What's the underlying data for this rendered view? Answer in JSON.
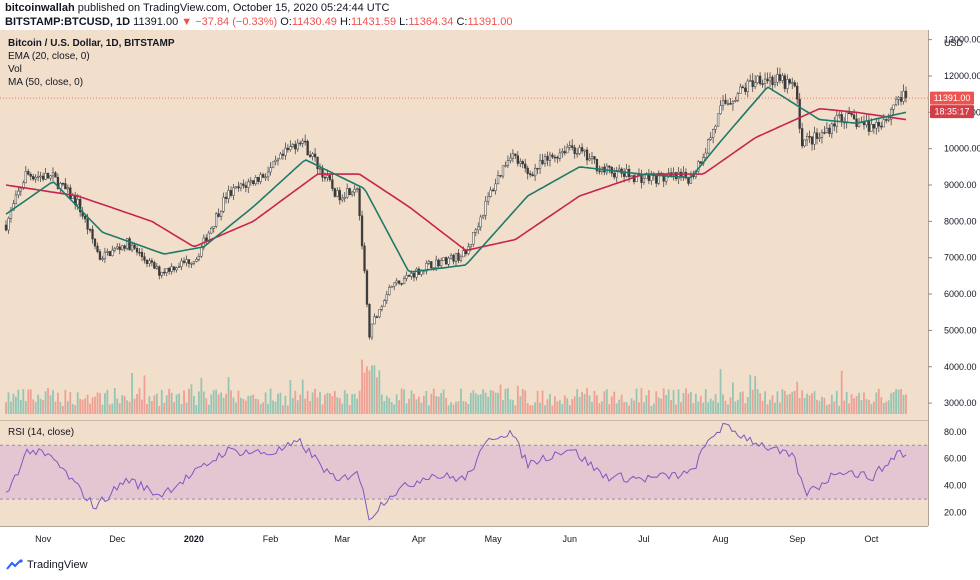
{
  "header": {
    "author": "bitcoinwallah",
    "published_text": "published on TradingView.com, October 15, 2020 05:24:44 UTC",
    "symbol": "BITSTAMP:BTCUSD, 1D",
    "last": "11391.00",
    "change": "▼ −37.84 (−0.33%)",
    "o_label": "O:",
    "o_value": "11430.49",
    "h_label": "H:",
    "h_value": "11431.59",
    "l_label": "L:",
    "l_value": "11364.34",
    "c_label": "C:",
    "c_value": "11391.00"
  },
  "legend": {
    "title": "Bitcoin / U.S. Dollar, 1D, BITSTAMP",
    "ema": "EMA (20, close, 0)",
    "vol": "Vol",
    "ma": "MA (50, close, 0)",
    "rsi": "RSI (14, close)"
  },
  "price_axis": {
    "unit": "USD",
    "ticks": [
      "13000.00",
      "12000.00",
      "11000.00",
      "10000.00",
      "9000.00",
      "8000.00",
      "7000.00",
      "6000.00",
      "5000.00",
      "4000.00",
      "3000.00"
    ],
    "last_label": "11391.00",
    "countdown_label": "18:35:17"
  },
  "rsi_axis": {
    "ticks": [
      "80.00",
      "60.00",
      "40.00",
      "20.00"
    ]
  },
  "time_axis": [
    "Nov",
    "Dec",
    "2020",
    "Feb",
    "Mar",
    "Apr",
    "May",
    "Jun",
    "Jul",
    "Aug",
    "Sep",
    "Oct"
  ],
  "footer": {
    "brand": "TradingView"
  },
  "colors": {
    "background": "#f1dfcb",
    "up": "#26a69a",
    "down": "#ef5350",
    "candle_up_body": "#f6f6f6",
    "candle_wick": "#4a4a4a",
    "ema": "#1e7a6a",
    "ma": "#c8244d",
    "rsi_line": "#7e57c2",
    "rsi_band": "#ddbad4"
  },
  "chart_data": [
    {
      "type": "candlestick",
      "title": "Bitcoin / U.S. Dollar, 1D, BITSTAMP",
      "ylabel": "USD",
      "ylim": [
        2700,
        13100
      ],
      "x_start": "2019-10-17",
      "x_end": "2020-10-15",
      "keypoints": [
        [
          "2019-10-17",
          7900
        ],
        [
          "2019-10-25",
          9300
        ],
        [
          "2019-11-05",
          9200
        ],
        [
          "2019-11-15",
          8500
        ],
        [
          "2019-11-24",
          7000
        ],
        [
          "2019-12-05",
          7400
        ],
        [
          "2019-12-18",
          6600
        ],
        [
          "2020-01-02",
          7000
        ],
        [
          "2020-01-14",
          8700
        ],
        [
          "2020-02-01",
          9400
        ],
        [
          "2020-02-13",
          10300
        ],
        [
          "2020-02-28",
          8700
        ],
        [
          "2020-03-07",
          9000
        ],
        [
          "2020-03-12",
          4900
        ],
        [
          "2020-03-14",
          5300
        ],
        [
          "2020-03-20",
          6200
        ],
        [
          "2020-04-05",
          6800
        ],
        [
          "2020-04-20",
          7100
        ],
        [
          "2020-04-30",
          8800
        ],
        [
          "2020-05-08",
          9900
        ],
        [
          "2020-05-15",
          9300
        ],
        [
          "2020-06-01",
          10100
        ],
        [
          "2020-06-15",
          9400
        ],
        [
          "2020-07-01",
          9200
        ],
        [
          "2020-07-20",
          9200
        ],
        [
          "2020-07-26",
          10000
        ],
        [
          "2020-08-02",
          11200
        ],
        [
          "2020-08-17",
          12000
        ],
        [
          "2020-08-31",
          11700
        ],
        [
          "2020-09-03",
          10200
        ],
        [
          "2020-09-10",
          10300
        ],
        [
          "2020-09-18",
          10900
        ],
        [
          "2020-10-01",
          10600
        ],
        [
          "2020-10-08",
          10900
        ],
        [
          "2020-10-11",
          11400
        ],
        [
          "2020-10-15",
          11391
        ]
      ],
      "last_price": 11391.0
    },
    {
      "type": "line",
      "name": "EMA (20, close, 0)",
      "points": [
        [
          "2019-10-17",
          8200
        ],
        [
          "2019-11-05",
          9100
        ],
        [
          "2019-11-25",
          7700
        ],
        [
          "2019-12-20",
          7100
        ],
        [
          "2020-01-05",
          7300
        ],
        [
          "2020-01-25",
          8400
        ],
        [
          "2020-02-15",
          9700
        ],
        [
          "2020-03-01",
          9200
        ],
        [
          "2020-03-10",
          8900
        ],
        [
          "2020-03-28",
          6600
        ],
        [
          "2020-04-20",
          6800
        ],
        [
          "2020-05-15",
          8700
        ],
        [
          "2020-06-05",
          9500
        ],
        [
          "2020-06-30",
          9300
        ],
        [
          "2020-07-20",
          9200
        ],
        [
          "2020-08-01",
          10200
        ],
        [
          "2020-08-20",
          11700
        ],
        [
          "2020-09-10",
          10800
        ],
        [
          "2020-09-25",
          10700
        ],
        [
          "2020-10-15",
          11000
        ]
      ]
    },
    {
      "type": "line",
      "name": "MA (50, close, 0)",
      "points": [
        [
          "2019-10-17",
          9000
        ],
        [
          "2019-11-15",
          8700
        ],
        [
          "2019-12-15",
          8000
        ],
        [
          "2020-01-01",
          7300
        ],
        [
          "2020-01-25",
          8000
        ],
        [
          "2020-02-20",
          9300
        ],
        [
          "2020-03-08",
          9300
        ],
        [
          "2020-03-28",
          8400
        ],
        [
          "2020-04-20",
          7200
        ],
        [
          "2020-05-10",
          7500
        ],
        [
          "2020-06-05",
          8700
        ],
        [
          "2020-07-01",
          9300
        ],
        [
          "2020-07-25",
          9300
        ],
        [
          "2020-08-15",
          10300
        ],
        [
          "2020-09-10",
          11100
        ],
        [
          "2020-09-25",
          11000
        ],
        [
          "2020-10-15",
          10800
        ]
      ]
    },
    {
      "type": "bar",
      "name": "Vol",
      "note": "daily volume, relative scale"
    },
    {
      "type": "line",
      "name": "RSI (14, close)",
      "ylim": [
        10,
        88
      ],
      "band": [
        30,
        70
      ],
      "ticks": [
        80,
        60,
        40,
        20
      ],
      "points": [
        [
          "2019-10-17",
          33
        ],
        [
          "2019-10-26",
          67
        ],
        [
          "2019-11-05",
          60
        ],
        [
          "2019-11-22",
          24
        ],
        [
          "2019-12-05",
          45
        ],
        [
          "2019-12-18",
          33
        ],
        [
          "2020-01-02",
          50
        ],
        [
          "2020-01-14",
          66
        ],
        [
          "2020-02-01",
          64
        ],
        [
          "2020-02-13",
          72
        ],
        [
          "2020-02-28",
          42
        ],
        [
          "2020-03-07",
          52
        ],
        [
          "2020-03-12",
          16
        ],
        [
          "2020-03-20",
          33
        ],
        [
          "2020-04-05",
          48
        ],
        [
          "2020-04-20",
          45
        ],
        [
          "2020-04-30",
          76
        ],
        [
          "2020-05-08",
          80
        ],
        [
          "2020-05-15",
          56
        ],
        [
          "2020-06-01",
          68
        ],
        [
          "2020-06-15",
          47
        ],
        [
          "2020-07-01",
          45
        ],
        [
          "2020-07-20",
          49
        ],
        [
          "2020-07-28",
          76
        ],
        [
          "2020-08-02",
          84
        ],
        [
          "2020-08-17",
          71
        ],
        [
          "2020-08-31",
          60
        ],
        [
          "2020-09-04",
          34
        ],
        [
          "2020-09-10",
          40
        ],
        [
          "2020-09-18",
          52
        ],
        [
          "2020-10-01",
          46
        ],
        [
          "2020-10-08",
          57
        ],
        [
          "2020-10-12",
          66
        ],
        [
          "2020-10-15",
          62
        ]
      ]
    }
  ]
}
